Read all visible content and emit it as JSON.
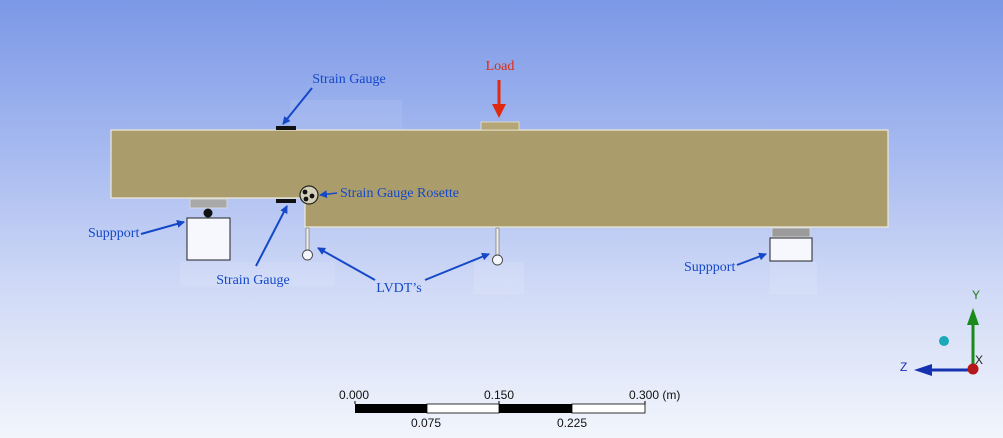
{
  "annotations": {
    "load": "Load",
    "strain_gauge_top": "Strain Gauge",
    "strain_gauge_bottom": "Strain Gauge",
    "strain_gauge_rosette": "Strain Gauge Rosette",
    "support_left": "Suppport",
    "support_right": "Suppport",
    "lvdts": "LVDT’s"
  },
  "scale_bar": {
    "top_labels": [
      "0.000",
      "0.150",
      "0.300 (m)"
    ],
    "bottom_labels": [
      "0.075",
      "0.225"
    ]
  },
  "triad": {
    "x": "X",
    "y": "Y",
    "z": "Z"
  },
  "colors": {
    "beam": "#ab9d6b",
    "annotation": "#1548c8",
    "load_arrow": "#e02a10",
    "y_axis": "#1a8a1a",
    "z_axis": "#1431b0",
    "origin": "#b51818",
    "iso_ball": "#1aa9b8"
  }
}
